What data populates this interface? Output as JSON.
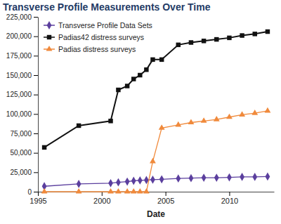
{
  "chart_data": {
    "type": "line",
    "title": "Transverse Profile Measurements Over Time",
    "x_label": "Date",
    "x": [
      1995.5,
      1998.2,
      2000.7,
      2001.3,
      2002.0,
      2002.5,
      2003.0,
      2003.5,
      2004.0,
      2004.7,
      2006.0,
      2007.0,
      2008.0,
      2009.0,
      2010.0,
      2011.0,
      2012.0,
      2013.0
    ],
    "series": [
      {
        "name": "Transverse Profile Data Sets",
        "color": "#5b3f9e",
        "marker": "diamond",
        "line_style": "solid",
        "values": [
          7000,
          10000,
          11000,
          12000,
          13000,
          14000,
          14500,
          15000,
          15500,
          16000,
          17000,
          17500,
          18000,
          18000,
          18500,
          19000,
          19000,
          19500
        ]
      },
      {
        "name": "Padias42 distress surveys",
        "color": "#111111",
        "marker": "square",
        "line_style": "solid",
        "values": [
          57000,
          85000,
          91000,
          131000,
          136000,
          145000,
          150000,
          157000,
          170000,
          170000,
          189000,
          192000,
          194000,
          196000,
          198000,
          201000,
          203000,
          206000
        ]
      },
      {
        "name": "Padias distress surveys",
        "color": "#f08a3c",
        "marker": "triangle",
        "line_style": "solid",
        "values": [
          0,
          0,
          0,
          0,
          0,
          0,
          0,
          0,
          39000,
          82000,
          86000,
          89000,
          91000,
          93000,
          96000,
          99000,
          101000,
          104000
        ]
      }
    ],
    "xlim": [
      1995,
      2013.5
    ],
    "xticks": [
      1995,
      2000,
      2005,
      2010
    ],
    "ylim": [
      0,
      225000
    ],
    "yticks": [
      0,
      {
        "value": 25000,
        "label": "25,000"
      },
      {
        "value": 50000,
        "label": "50,000"
      },
      {
        "value": 75000,
        "label": "75,000"
      },
      {
        "value": 100000,
        "label": "100,000"
      },
      {
        "value": 125000,
        "label": "125,000"
      },
      {
        "value": 150000,
        "label": "150,000"
      },
      {
        "value": 175000,
        "label": "175,000"
      },
      {
        "value": 200000,
        "label": "200,000"
      },
      {
        "value": 225000,
        "label": "225,000"
      }
    ],
    "grid": false,
    "legend": "upper left"
  }
}
